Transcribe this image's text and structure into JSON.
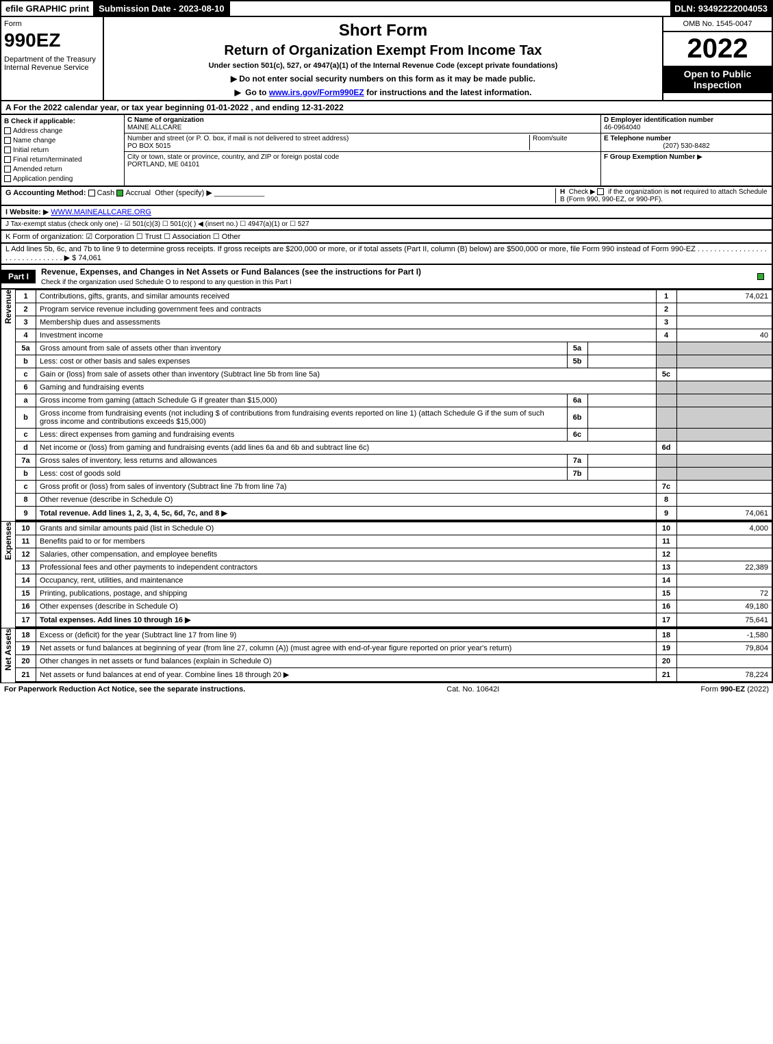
{
  "topbar": {
    "efile": "efile GRAPHIC print",
    "submission": "Submission Date - 2023-08-10",
    "dln": "DLN: 93492222004053"
  },
  "header": {
    "form_label": "Form",
    "form_no": "990EZ",
    "dept": "Department of the Treasury\nInternal Revenue Service",
    "short_form": "Short Form",
    "title": "Return of Organization Exempt From Income Tax",
    "under": "Under section 501(c), 527, or 4947(a)(1) of the Internal Revenue Code (except private foundations)",
    "warn1": "Do not enter social security numbers on this form as it may be made public.",
    "warn2_a": "Go to ",
    "warn2_link": "www.irs.gov/Form990EZ",
    "warn2_b": " for instructions and the latest information.",
    "omb": "OMB No. 1545-0047",
    "year": "2022",
    "inspection": "Open to Public Inspection"
  },
  "section_a": "A  For the 2022 calendar year, or tax year beginning 01-01-2022  , and ending 12-31-2022",
  "col_b": {
    "title": "B  Check if applicable:",
    "items": [
      "Address change",
      "Name change",
      "Initial return",
      "Final return/terminated",
      "Amended return",
      "Application pending"
    ]
  },
  "col_c": {
    "name_label": "C Name of organization",
    "name": "MAINE ALLCARE",
    "addr_label": "Number and street (or P. O. box, if mail is not delivered to street address)",
    "addr": "PO BOX 5015",
    "room_label": "Room/suite",
    "city_label": "City or town, state or province, country, and ZIP or foreign postal code",
    "city": "PORTLAND, ME  04101"
  },
  "col_d": {
    "ein_label": "D Employer identification number",
    "ein": "46-0964040",
    "tel_label": "E Telephone number",
    "tel": "(207) 530-8482",
    "grp_label": "F Group Exemption Number"
  },
  "row_g": {
    "label": "G Accounting Method:",
    "cash": "Cash",
    "accrual": "Accrual",
    "other": "Other (specify)"
  },
  "row_h": "H  Check ▶  if the organization is not required to attach Schedule B (Form 990, 990-EZ, or 990-PF).",
  "row_i": {
    "label": "I Website: ",
    "url": "WWW.MAINEALLCARE.ORG"
  },
  "row_j": "J Tax-exempt status (check only one) -  ☑ 501(c)(3)  ☐ 501(c)(  ) ◀ (insert no.)  ☐ 4947(a)(1) or  ☐ 527",
  "row_k": "K Form of organization:  ☑ Corporation  ☐ Trust  ☐ Association  ☐ Other",
  "row_l": {
    "text": "L Add lines 5b, 6c, and 7b to line 9 to determine gross receipts. If gross receipts are $200,000 or more, or if total assets (Part II, column (B) below) are $500,000 or more, file Form 990 instead of Form 990-EZ",
    "amount": "$ 74,061"
  },
  "part1": {
    "tab": "Part I",
    "title": "Revenue, Expenses, and Changes in Net Assets or Fund Balances (see the instructions for Part I)",
    "sub": "Check if the organization used Schedule O to respond to any question in this Part I"
  },
  "sidebars": {
    "revenue": "Revenue",
    "expenses": "Expenses",
    "netassets": "Net Assets"
  },
  "lines": [
    {
      "n": "1",
      "d": "Contributions, gifts, grants, and similar amounts received",
      "rn": "1",
      "v": "74,021"
    },
    {
      "n": "2",
      "d": "Program service revenue including government fees and contracts",
      "rn": "2",
      "v": ""
    },
    {
      "n": "3",
      "d": "Membership dues and assessments",
      "rn": "3",
      "v": ""
    },
    {
      "n": "4",
      "d": "Investment income",
      "rn": "4",
      "v": "40"
    },
    {
      "n": "5a",
      "d": "Gross amount from sale of assets other than inventory",
      "sc": "5a",
      "sv": ""
    },
    {
      "n": "b",
      "d": "Less: cost or other basis and sales expenses",
      "sc": "5b",
      "sv": ""
    },
    {
      "n": "c",
      "d": "Gain or (loss) from sale of assets other than inventory (Subtract line 5b from line 5a)",
      "rn": "5c",
      "v": ""
    },
    {
      "n": "6",
      "d": "Gaming and fundraising events",
      "hdr": true
    },
    {
      "n": "a",
      "d": "Gross income from gaming (attach Schedule G if greater than $15,000)",
      "sc": "6a",
      "sv": ""
    },
    {
      "n": "b",
      "d": "Gross income from fundraising events (not including $                     of contributions from fundraising events reported on line 1) (attach Schedule G if the sum of such gross income and contributions exceeds $15,000)",
      "sc": "6b",
      "sv": "",
      "wrap": true
    },
    {
      "n": "c",
      "d": "Less: direct expenses from gaming and fundraising events",
      "sc": "6c",
      "sv": ""
    },
    {
      "n": "d",
      "d": "Net income or (loss) from gaming and fundraising events (add lines 6a and 6b and subtract line 6c)",
      "rn": "6d",
      "v": ""
    },
    {
      "n": "7a",
      "d": "Gross sales of inventory, less returns and allowances",
      "sc": "7a",
      "sv": ""
    },
    {
      "n": "b",
      "d": "Less: cost of goods sold",
      "sc": "7b",
      "sv": ""
    },
    {
      "n": "c",
      "d": "Gross profit or (loss) from sales of inventory (Subtract line 7b from line 7a)",
      "rn": "7c",
      "v": ""
    },
    {
      "n": "8",
      "d": "Other revenue (describe in Schedule O)",
      "rn": "8",
      "v": ""
    },
    {
      "n": "9",
      "d": "Total revenue. Add lines 1, 2, 3, 4, 5c, 6d, 7c, and 8",
      "rn": "9",
      "v": "74,061",
      "bold": true,
      "arrow": true
    }
  ],
  "exp_lines": [
    {
      "n": "10",
      "d": "Grants and similar amounts paid (list in Schedule O)",
      "rn": "10",
      "v": "4,000"
    },
    {
      "n": "11",
      "d": "Benefits paid to or for members",
      "rn": "11",
      "v": ""
    },
    {
      "n": "12",
      "d": "Salaries, other compensation, and employee benefits",
      "rn": "12",
      "v": ""
    },
    {
      "n": "13",
      "d": "Professional fees and other payments to independent contractors",
      "rn": "13",
      "v": "22,389"
    },
    {
      "n": "14",
      "d": "Occupancy, rent, utilities, and maintenance",
      "rn": "14",
      "v": ""
    },
    {
      "n": "15",
      "d": "Printing, publications, postage, and shipping",
      "rn": "15",
      "v": "72"
    },
    {
      "n": "16",
      "d": "Other expenses (describe in Schedule O)",
      "rn": "16",
      "v": "49,180"
    },
    {
      "n": "17",
      "d": "Total expenses. Add lines 10 through 16",
      "rn": "17",
      "v": "75,641",
      "bold": true,
      "arrow": true
    }
  ],
  "na_lines": [
    {
      "n": "18",
      "d": "Excess or (deficit) for the year (Subtract line 17 from line 9)",
      "rn": "18",
      "v": "-1,580"
    },
    {
      "n": "19",
      "d": "Net assets or fund balances at beginning of year (from line 27, column (A)) (must agree with end-of-year figure reported on prior year's return)",
      "rn": "19",
      "v": "79,804",
      "wrap": true
    },
    {
      "n": "20",
      "d": "Other changes in net assets or fund balances (explain in Schedule O)",
      "rn": "20",
      "v": ""
    },
    {
      "n": "21",
      "d": "Net assets or fund balances at end of year. Combine lines 18 through 20",
      "rn": "21",
      "v": "78,224",
      "arrow": true
    }
  ],
  "footer": {
    "left": "For Paperwork Reduction Act Notice, see the separate instructions.",
    "mid": "Cat. No. 10642I",
    "right": "Form 990-EZ (2022)"
  }
}
